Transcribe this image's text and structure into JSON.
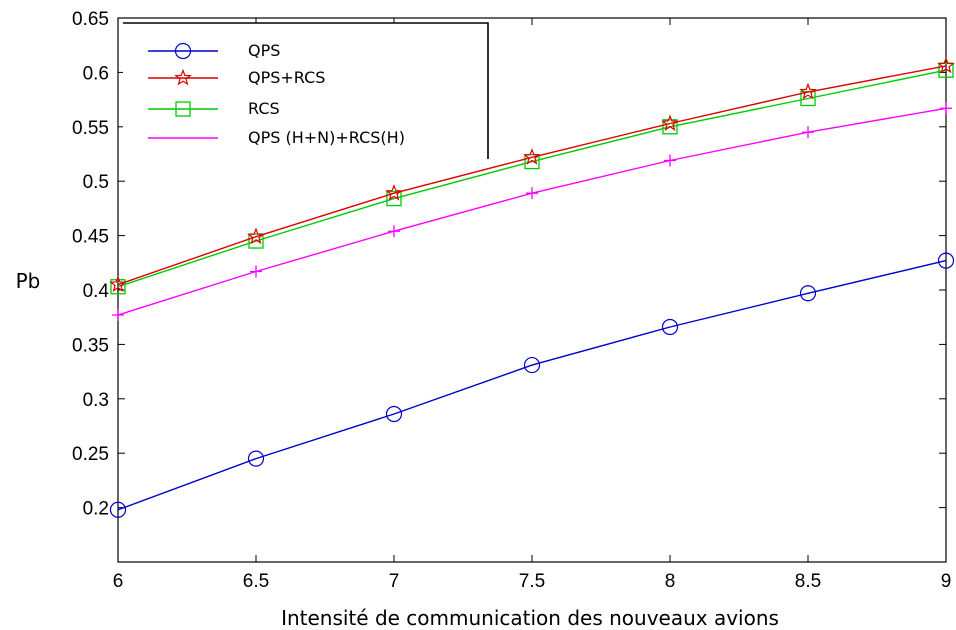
{
  "chart_data": {
    "type": "line",
    "title": "",
    "xlabel": "Intensité de communication des nouveaux avions",
    "ylabel": "Pb",
    "xlim": [
      6,
      9
    ],
    "ylim": [
      0.15,
      0.65
    ],
    "xticks": [
      6,
      6.5,
      7,
      7.5,
      8,
      8.5,
      9
    ],
    "xtick_labels": [
      "6",
      "6.5",
      "7",
      "7.5",
      "8",
      "8.5",
      "9"
    ],
    "yticks": [
      0.2,
      0.25,
      0.3,
      0.35,
      0.4,
      0.45,
      0.5,
      0.55,
      0.6,
      0.65
    ],
    "ytick_labels": [
      "0.2",
      "0.25",
      "0.3",
      "0.35",
      "0.4",
      "0.45",
      "0.5",
      "0.55",
      "0.6",
      "0.65"
    ],
    "grid": false,
    "legend_position": "top-left",
    "x": [
      6,
      6.5,
      7,
      7.5,
      8,
      8.5,
      9
    ],
    "series": [
      {
        "name": "QPS",
        "color": "#0000cc",
        "marker": "circle",
        "values": [
          0.198,
          0.245,
          0.286,
          0.331,
          0.366,
          0.397,
          0.427
        ]
      },
      {
        "name": "QPS+RCS",
        "color": "#dd0000",
        "marker": "star",
        "values": [
          0.405,
          0.449,
          0.489,
          0.522,
          0.553,
          0.582,
          0.606
        ]
      },
      {
        "name": "RCS",
        "color": "#00cc00",
        "marker": "square",
        "values": [
          0.403,
          0.445,
          0.484,
          0.518,
          0.55,
          0.576,
          0.602
        ]
      },
      {
        "name": "QPS (H+N)+RCS(H)",
        "color": "#ff00ff",
        "marker": "plus",
        "values": [
          0.377,
          0.417,
          0.454,
          0.489,
          0.519,
          0.545,
          0.567
        ]
      }
    ]
  }
}
